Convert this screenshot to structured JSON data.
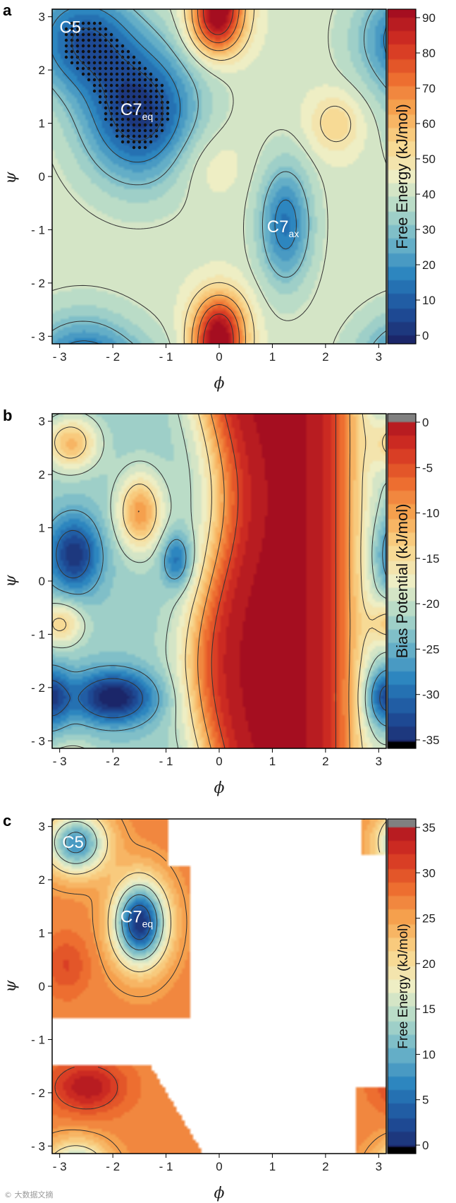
{
  "colors": {
    "low": "#1b3f8a",
    "mid": "#f3f1c6",
    "high": "#b3121f",
    "contour": "#333333",
    "dots": "#111111"
  },
  "watermark": "© 大数据文摘",
  "chart_data": [
    {
      "panel": "a",
      "type": "heatmap",
      "xlabel": "ϕ",
      "ylabel": "ψ",
      "xlim": [
        -3.14,
        3.14
      ],
      "ylim": [
        -3.14,
        3.14
      ],
      "xticks": [
        "- 3",
        "- 2",
        "- 1",
        "0",
        "1",
        "2",
        "3"
      ],
      "yticks": [
        "3",
        "2",
        "1",
        "0",
        "- 1",
        "- 2",
        "- 3"
      ],
      "colorbar": {
        "label": "Free Energy (kJ/mol)",
        "range": [
          0,
          90
        ],
        "ticks": [
          "90",
          "80",
          "70",
          "60",
          "50",
          "40",
          "30",
          "20",
          "10",
          "0"
        ]
      },
      "dotted_region": "C5/C7eq basin and periodic images",
      "annotations": [
        {
          "text": "C5",
          "sub": "",
          "phi": -2.8,
          "psi": 2.7
        },
        {
          "text": "C7",
          "sub": "eq",
          "phi": -1.55,
          "psi": 1.15
        },
        {
          "text": "C7",
          "sub": "ax",
          "phi": 1.2,
          "psi": -1.05
        }
      ],
      "basins": [
        {
          "name": "C5",
          "phi": -2.6,
          "psi": 2.6,
          "energy": 3
        },
        {
          "name": "C7eq",
          "phi": -1.5,
          "psi": 1.2,
          "energy": 0
        },
        {
          "name": "C7ax",
          "phi": 1.25,
          "psi": -0.9,
          "energy": 8
        }
      ]
    },
    {
      "panel": "b",
      "type": "heatmap",
      "xlabel": "ϕ",
      "ylabel": "ψ",
      "xlim": [
        -3.14,
        3.14
      ],
      "ylim": [
        -3.14,
        3.14
      ],
      "xticks": [
        "- 3",
        "- 2",
        "- 1",
        "0",
        "1",
        "2",
        "3"
      ],
      "yticks": [
        "3",
        "2",
        "1",
        "0",
        "- 1",
        "- 2",
        "- 3"
      ],
      "colorbar": {
        "label": "Bias Potential (kJ/mol)",
        "range": [
          -35,
          0
        ],
        "ticks": [
          "0",
          "-5",
          "-10",
          "-15",
          "-20",
          "-25",
          "-30",
          "-35"
        ]
      },
      "annotations": []
    },
    {
      "panel": "c",
      "type": "heatmap",
      "xlabel": "ϕ",
      "ylabel": "ψ",
      "xlim": [
        -3.14,
        3.14
      ],
      "ylim": [
        -3.14,
        3.14
      ],
      "xticks": [
        "- 3",
        "- 2",
        "- 1",
        "0",
        "1",
        "2",
        "3"
      ],
      "yticks": [
        "3",
        "2",
        "1",
        "0",
        "- 1",
        "- 2",
        "- 3"
      ],
      "colorbar": {
        "label": "Free Energy (kJ/mol)",
        "range": [
          0,
          35
        ],
        "ticks": [
          "35",
          "30",
          "25",
          "20",
          "15",
          "10",
          "5",
          "0"
        ]
      },
      "annotations": [
        {
          "text": "C5",
          "sub": "",
          "phi": -2.75,
          "psi": 2.6
        },
        {
          "text": "C7",
          "sub": "eq",
          "phi": -1.55,
          "psi": 1.2
        }
      ]
    }
  ]
}
